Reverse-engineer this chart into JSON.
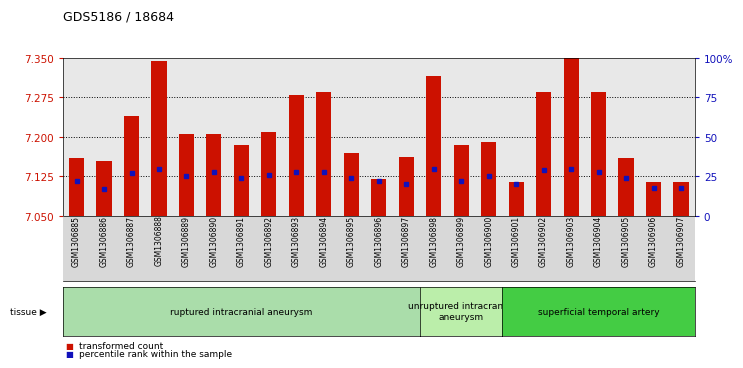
{
  "title": "GDS5186 / 18684",
  "samples": [
    "GSM1306885",
    "GSM1306886",
    "GSM1306887",
    "GSM1306888",
    "GSM1306889",
    "GSM1306890",
    "GSM1306891",
    "GSM1306892",
    "GSM1306893",
    "GSM1306894",
    "GSM1306895",
    "GSM1306896",
    "GSM1306897",
    "GSM1306898",
    "GSM1306899",
    "GSM1306900",
    "GSM1306901",
    "GSM1306902",
    "GSM1306903",
    "GSM1306904",
    "GSM1306905",
    "GSM1306906",
    "GSM1306907"
  ],
  "values": [
    7.16,
    7.155,
    7.24,
    7.345,
    7.205,
    7.205,
    7.185,
    7.21,
    7.28,
    7.285,
    7.17,
    7.12,
    7.162,
    7.315,
    7.185,
    7.19,
    7.115,
    7.285,
    7.35,
    7.285,
    7.16,
    7.115,
    7.115
  ],
  "percentiles": [
    22,
    17,
    27,
    30,
    25,
    28,
    24,
    26,
    28,
    28,
    24,
    22,
    20,
    30,
    22,
    25,
    20,
    29,
    30,
    28,
    24,
    18,
    18
  ],
  "ymin": 7.05,
  "ymax": 7.35,
  "yleft_ticks": [
    7.05,
    7.125,
    7.2,
    7.275,
    7.35
  ],
  "yright_ticks": [
    0,
    25,
    50,
    75,
    100
  ],
  "yright_labels": [
    "0",
    "25",
    "50",
    "75",
    "100%"
  ],
  "bar_color": "#cc1100",
  "marker_color": "#1111bb",
  "plot_bg_color": "#e8e8e8",
  "xtick_bg_color": "#d8d8d8",
  "groups": [
    {
      "label": "ruptured intracranial aneurysm",
      "start": 0,
      "end": 13,
      "color": "#aaddaa"
    },
    {
      "label": "unruptured intracranial\naneurysm",
      "start": 13,
      "end": 16,
      "color": "#bbeeaa"
    },
    {
      "label": "superficial temporal artery",
      "start": 16,
      "end": 23,
      "color": "#44cc44"
    }
  ],
  "legend_items": [
    {
      "label": "transformed count",
      "color": "#cc1100"
    },
    {
      "label": "percentile rank within the sample",
      "color": "#1111bb"
    }
  ],
  "tick_color_left": "#cc1100",
  "tick_color_right": "#1111bb",
  "bar_width": 0.55
}
